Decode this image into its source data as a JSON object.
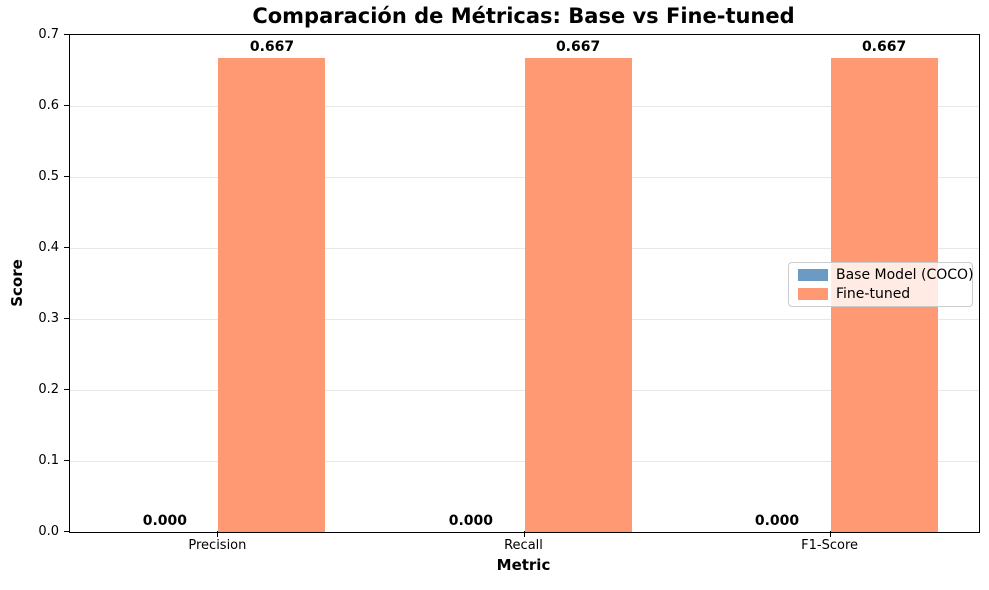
{
  "chart_data": {
    "type": "bar",
    "title": "Comparación de Métricas: Base vs Fine-tuned",
    "xlabel": "Metric",
    "ylabel": "Score",
    "categories": [
      "Precision",
      "Recall",
      "F1-Score"
    ],
    "series": [
      {
        "name": "Base Model (COCO)",
        "color": "#6B9BC3",
        "values": [
          0.0,
          0.0,
          0.0
        ],
        "bar_labels": [
          "0.000",
          "0.000",
          "0.000"
        ],
        "offset": -0.175
      },
      {
        "name": "Fine-tuned",
        "color": "#FF9973",
        "values": [
          0.667,
          0.667,
          0.667
        ],
        "bar_labels": [
          "0.667",
          "0.667",
          "0.667"
        ],
        "offset": 0.175
      }
    ],
    "bar_width": 0.35,
    "xlim": [
      -0.485,
      2.485
    ],
    "ylim": [
      0.0,
      0.7
    ],
    "yticks": [
      "0.0",
      "0.1",
      "0.2",
      "0.3",
      "0.4",
      "0.5",
      "0.6",
      "0.7"
    ],
    "grid": "horizontal",
    "legend_position": "center-right"
  }
}
